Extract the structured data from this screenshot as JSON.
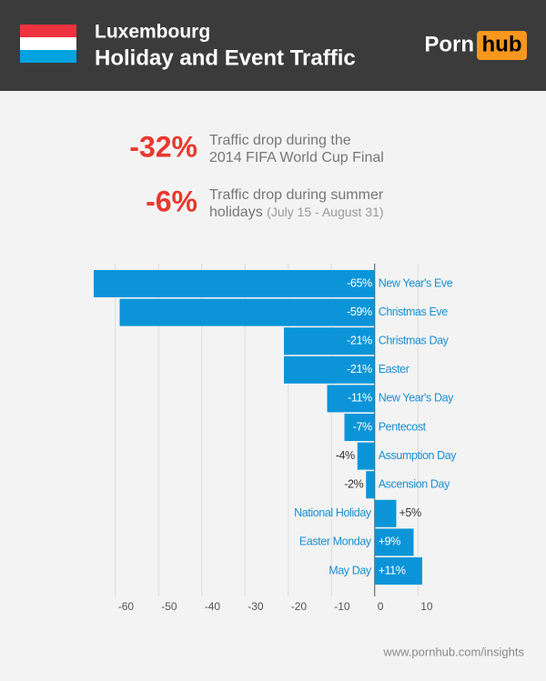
{
  "header": {
    "title": "Luxembourg",
    "subtitle": "Holiday and Event Traffic",
    "logo_left": "Porn",
    "logo_right": "hub"
  },
  "stats": [
    {
      "value": "-32%",
      "line1": "Traffic drop during the",
      "line2": "2014 FIFA World Cup Final"
    },
    {
      "value": "-6%",
      "line1": "Traffic drop during summer",
      "line2": "holidays",
      "note": "(July 15 - August 31)"
    }
  ],
  "chart_data": {
    "type": "barh",
    "categories": [
      "New Year's Eve",
      "Christmas Eve",
      "Christmas Day",
      "Easter",
      "New Year's Day",
      "Pentecost",
      "Assumption Day",
      "Ascension Day",
      "National Holiday",
      "Easter Monday",
      "May Day"
    ],
    "values": [
      -65,
      -59,
      -21,
      -21,
      -11,
      -7,
      -4,
      -2,
      5,
      9,
      11
    ],
    "value_labels": [
      "-65%",
      "-59%",
      "-21%",
      "-21%",
      "-11%",
      "-7%",
      "-4%",
      "-2%",
      "+5%",
      "+9%",
      "+11%"
    ],
    "color": "#0b95d8",
    "xlim": [
      -65,
      11
    ],
    "xticks": [
      -60,
      -50,
      -40,
      -30,
      -20,
      -10,
      0,
      10
    ],
    "grid": true
  },
  "footer": "www.pornhub.com/insights"
}
